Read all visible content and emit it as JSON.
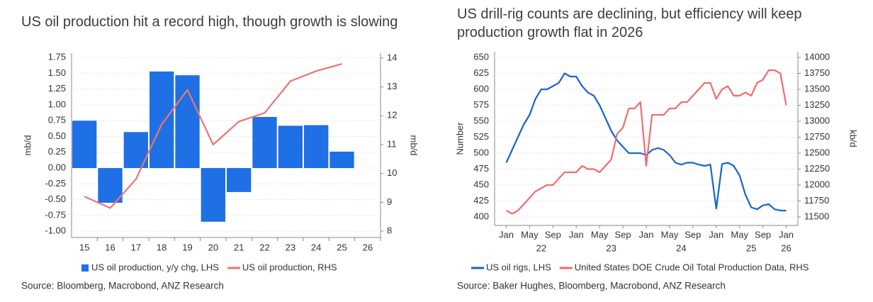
{
  "chart_data": [
    {
      "type": "bar",
      "title": "US oil production hit a record high, though growth is slowing",
      "ylabel": "mb/d",
      "y2label": "mb/d",
      "categories": [
        "15",
        "16",
        "17",
        "18",
        "19",
        "20",
        "21",
        "22",
        "23",
        "24",
        "25",
        "26"
      ],
      "series": [
        {
          "name": "US oil production, y/y chg, LHS",
          "color": "#1f6fe5",
          "type": "bar",
          "values": [
            0.75,
            -0.55,
            0.57,
            1.53,
            1.47,
            -0.85,
            -0.38,
            0.81,
            0.67,
            0.68,
            0.26,
            null
          ]
        },
        {
          "name": "US oil production, RHS",
          "color": "#f07470",
          "type": "line",
          "axis": "y2",
          "values": [
            9.2,
            8.8,
            9.8,
            11.7,
            12.9,
            11.0,
            11.8,
            12.1,
            13.2,
            13.55,
            13.8,
            null
          ]
        }
      ],
      "ylim": [
        -1.1,
        1.82
      ],
      "yticks": [
        {
          "value": -1,
          "label": "-1.00"
        },
        {
          "value": -0.75,
          "label": "-0.75"
        },
        {
          "value": -0.5,
          "label": "-0.50"
        },
        {
          "value": -0.25,
          "label": "-0.25"
        },
        {
          "value": 0,
          "label": "0.00"
        },
        {
          "value": 0.25,
          "label": "0.25"
        },
        {
          "value": 0.5,
          "label": "0.50"
        },
        {
          "value": 0.75,
          "label": "0.75"
        },
        {
          "value": 1,
          "label": "1.00"
        },
        {
          "value": 1.25,
          "label": "1.25"
        },
        {
          "value": 1.5,
          "label": "1.50"
        },
        {
          "value": 1.75,
          "label": "1.75"
        }
      ],
      "y2lim": [
        7.78,
        14.17
      ],
      "y2ticks": [
        8,
        9,
        10,
        11,
        12,
        13,
        14
      ],
      "grid": true,
      "source": "Source: Bloomberg, Macrobond, ANZ Research"
    },
    {
      "type": "line",
      "title": "US drill-rig counts are declining, but efficiency will keep production growth flat in 2026",
      "ylabel": "Number",
      "y2label": "kb/d",
      "x": [
        "2022-01",
        "2022-02",
        "2022-03",
        "2022-04",
        "2022-05",
        "2022-06",
        "2022-07",
        "2022-08",
        "2022-09",
        "2022-10",
        "2022-11",
        "2022-12",
        "2023-01",
        "2023-02",
        "2023-03",
        "2023-04",
        "2023-05",
        "2023-06",
        "2023-07",
        "2023-08",
        "2023-09",
        "2023-10",
        "2023-11",
        "2023-12",
        "2024-01",
        "2024-02",
        "2024-03",
        "2024-04",
        "2024-05",
        "2024-06",
        "2024-07",
        "2024-08",
        "2024-09",
        "2024-10",
        "2024-11",
        "2024-12",
        "2025-01",
        "2025-02",
        "2025-03",
        "2025-04",
        "2025-05",
        "2025-06",
        "2025-07",
        "2025-08",
        "2025-09",
        "2025-10",
        "2025-11",
        "2025-12",
        "2026-01"
      ],
      "series": [
        {
          "name": "US oil rigs, LHS",
          "color": "#1565d0",
          "values": [
            485,
            505,
            525,
            545,
            560,
            585,
            600,
            600,
            605,
            610,
            625,
            620,
            620,
            605,
            595,
            590,
            575,
            555,
            535,
            520,
            510,
            500,
            500,
            500,
            497,
            505,
            508,
            505,
            497,
            485,
            482,
            485,
            485,
            482,
            480,
            482,
            413,
            483,
            485,
            480,
            465,
            435,
            415,
            412,
            418,
            420,
            412,
            410,
            410
          ]
        },
        {
          "name": "United States DOE Crude Oil Total Production Data, RHS",
          "color": "#f26d6d",
          "axis": "y2",
          "values": [
            11600,
            11550,
            11600,
            11700,
            11800,
            11900,
            11950,
            12000,
            12000,
            12100,
            12200,
            12200,
            12200,
            12300,
            12250,
            12250,
            12200,
            12300,
            12400,
            12800,
            12900,
            13200,
            13200,
            13300,
            12300,
            13100,
            13100,
            13100,
            13200,
            13200,
            13300,
            13300,
            13400,
            13500,
            13600,
            13600,
            13350,
            13500,
            13550,
            13400,
            13400,
            13450,
            13400,
            13600,
            13650,
            13800,
            13800,
            13750,
            13250
          ]
        }
      ],
      "xlim": [
        "2021-11",
        "2026-03"
      ],
      "xticks": [
        {
          "value": "2022-01",
          "label": "Jan"
        },
        {
          "value": "2022-05",
          "label": "May"
        },
        {
          "value": "2022-09",
          "label": "Sep"
        },
        {
          "value": "2023-01",
          "label": "Jan"
        },
        {
          "value": "2023-05",
          "label": "May"
        },
        {
          "value": "2023-09",
          "label": "Sep"
        },
        {
          "value": "2024-01",
          "label": "Jan"
        },
        {
          "value": "2024-05",
          "label": "May"
        },
        {
          "value": "2024-09",
          "label": "Sep"
        },
        {
          "value": "2025-01",
          "label": "Jan"
        },
        {
          "value": "2025-05",
          "label": "May"
        },
        {
          "value": "2025-09",
          "label": "Sep"
        },
        {
          "value": "2026-01",
          "label": "Jan"
        }
      ],
      "xticks_year": [
        {
          "value": "2022-07",
          "label": "22"
        },
        {
          "value": "2023-07",
          "label": "23"
        },
        {
          "value": "2024-07",
          "label": "24"
        },
        {
          "value": "2025-07",
          "label": "25"
        },
        {
          "value": "2026-01",
          "label": "26"
        }
      ],
      "ylim": [
        386.7,
        658.9
      ],
      "yticks": [
        400,
        425,
        450,
        475,
        500,
        525,
        550,
        575,
        600,
        625,
        650
      ],
      "y2lim": [
        11367,
        14089
      ],
      "y2ticks": [
        11500,
        11750,
        12000,
        12250,
        12500,
        12750,
        13000,
        13250,
        13500,
        13750,
        14000
      ],
      "grid": true,
      "source": "Source: Baker Hughes, Bloomberg, Macrobond, ANZ Research"
    }
  ]
}
